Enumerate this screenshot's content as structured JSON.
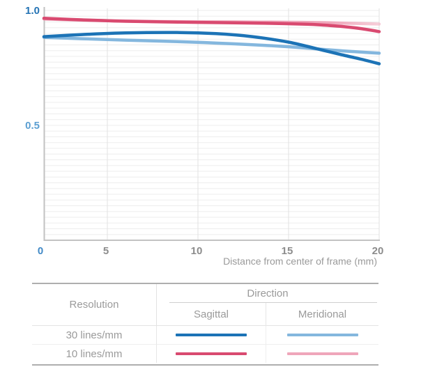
{
  "colors": {
    "blue_dark": "#1c73b6",
    "blue_light": "#84b7de",
    "pink_dark": "#d94a70",
    "pink_light": "#efa6ba",
    "axis_line": "#c2c2c2",
    "grid_h": "#ededed",
    "grid_v": "#e2e2e2",
    "tick_gray": "#8c8c8c",
    "y_top_color": "#2473b4",
    "y_mid_color": "#5c9fd2",
    "x_zero_color": "#4189c6",
    "muted_text": "#9a9a9a"
  },
  "chart_data": {
    "type": "line",
    "title": "",
    "xlabel": "Distance from center of frame (mm)",
    "ylabel": "",
    "xlim": [
      0,
      20
    ],
    "ylim": [
      0,
      1.0
    ],
    "grid": "fine horizontal lines every 0.025; vertical gridlines at each x tick",
    "legend_position": "table below chart",
    "y_ticks": [
      {
        "label": "1.0",
        "value": 1.0,
        "color": "#2473b4"
      },
      {
        "label": "0.5",
        "value": 0.5,
        "color": "#5c9fd2"
      }
    ],
    "x_ticks": [
      {
        "label": "0",
        "value": 0,
        "color": "#4189c6"
      },
      {
        "label": "5",
        "value": 5,
        "color": "#8c8c8c"
      },
      {
        "label": "10",
        "value": 10,
        "color": "#8c8c8c"
      },
      {
        "label": "15",
        "value": 15,
        "color": "#8c8c8c"
      },
      {
        "label": "20",
        "value": 20,
        "color": "#8c8c8c"
      }
    ],
    "series": [
      {
        "name": "30 lines/mm Sagittal",
        "color": "#1c73b6",
        "points": [
          [
            0,
            0.886
          ],
          [
            3,
            0.895
          ],
          [
            6,
            0.902
          ],
          [
            9,
            0.904
          ],
          [
            11,
            0.899
          ],
          [
            13,
            0.886
          ],
          [
            15,
            0.862
          ],
          [
            17,
            0.825
          ],
          [
            18,
            0.806
          ],
          [
            19,
            0.788
          ],
          [
            20,
            0.768
          ]
        ]
      },
      {
        "name": "30 lines/mm Meridional",
        "color": "#84b7de",
        "points": [
          [
            0,
            0.883
          ],
          [
            3,
            0.877
          ],
          [
            6,
            0.871
          ],
          [
            9,
            0.864
          ],
          [
            11,
            0.858
          ],
          [
            13,
            0.851
          ],
          [
            15,
            0.842
          ],
          [
            17,
            0.83
          ],
          [
            18,
            0.824
          ],
          [
            19,
            0.819
          ],
          [
            20,
            0.814
          ]
        ]
      },
      {
        "name": "10 lines/mm Meridional",
        "color": "#efa6ba",
        "points": [
          [
            0,
            0.963
          ],
          [
            3,
            0.958
          ],
          [
            6,
            0.954
          ],
          [
            9,
            0.951
          ],
          [
            12,
            0.95
          ],
          [
            14,
            0.949
          ],
          [
            16,
            0.948
          ],
          [
            18,
            0.945
          ],
          [
            20,
            0.941
          ]
        ]
      },
      {
        "name": "10 lines/mm Sagittal",
        "color": "#d94a70",
        "points": [
          [
            0,
            0.966
          ],
          [
            3,
            0.959
          ],
          [
            6,
            0.953
          ],
          [
            9,
            0.949
          ],
          [
            12,
            0.946
          ],
          [
            14,
            0.944
          ],
          [
            16,
            0.94
          ],
          [
            17,
            0.936
          ],
          [
            18,
            0.93
          ],
          [
            19,
            0.921
          ],
          [
            20,
            0.908
          ]
        ]
      }
    ]
  },
  "table": {
    "resolution_label": "Resolution",
    "direction_label": "Direction",
    "sagittal_label": "Sagittal",
    "meridional_label": "Meridional",
    "rows": [
      {
        "label": "30 lines/mm"
      },
      {
        "label": "10 lines/mm"
      }
    ]
  }
}
